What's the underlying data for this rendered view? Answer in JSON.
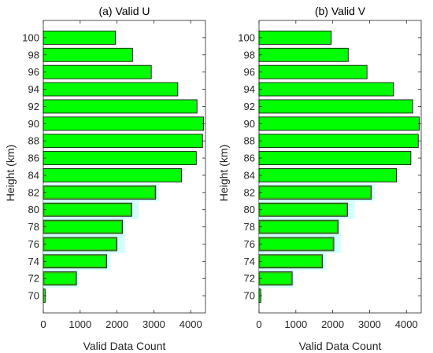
{
  "colors": {
    "bar_fill": "#00ff00",
    "bar_stroke": "#000000",
    "shadow": "#ccffff",
    "bar_dark": "#4d8a1e",
    "axis": "#262626"
  },
  "chart_data": [
    {
      "type": "bar",
      "orientation": "horizontal",
      "title": "(a) Valid U",
      "xlabel": "Valid Data Count",
      "ylabel": "Height (km)",
      "categories": [
        "70",
        "72",
        "74",
        "76",
        "78",
        "80",
        "82",
        "84",
        "86",
        "88",
        "90",
        "92",
        "94",
        "96",
        "98",
        "100"
      ],
      "values": [
        50,
        900,
        1720,
        2000,
        2150,
        2400,
        3050,
        3750,
        4150,
        4320,
        4350,
        4170,
        3650,
        2930,
        2420,
        1960
      ],
      "shadow_values": [
        0,
        960,
        1830,
        2230,
        2230,
        2600,
        3140,
        3750,
        4150,
        4320,
        4350,
        4170,
        3650,
        2930,
        2420,
        1960
      ],
      "xlim": [
        0,
        4400
      ],
      "ylim": [
        68,
        102
      ],
      "xticks": [
        "0",
        "1000",
        "2000",
        "3000",
        "4000"
      ],
      "yticks": [
        "70",
        "72",
        "74",
        "76",
        "78",
        "80",
        "82",
        "84",
        "86",
        "88",
        "90",
        "92",
        "94",
        "96",
        "98",
        "100"
      ],
      "grid": false
    },
    {
      "type": "bar",
      "orientation": "horizontal",
      "title": "(b) Valid V",
      "xlabel": "Valid Data Count",
      "ylabel": "Height (km)",
      "categories": [
        "70",
        "72",
        "74",
        "76",
        "78",
        "80",
        "82",
        "84",
        "86",
        "88",
        "90",
        "92",
        "94",
        "96",
        "98",
        "100"
      ],
      "values": [
        50,
        900,
        1720,
        2030,
        2150,
        2400,
        3050,
        3730,
        4120,
        4320,
        4350,
        4170,
        3650,
        2930,
        2420,
        1960
      ],
      "shadow_values": [
        0,
        960,
        1830,
        2230,
        2230,
        2600,
        3140,
        3730,
        4120,
        4320,
        4350,
        4170,
        3650,
        2930,
        2420,
        1960
      ],
      "xlim": [
        0,
        4400
      ],
      "ylim": [
        68,
        102
      ],
      "xticks": [
        "0",
        "1000",
        "2000",
        "3000",
        "4000"
      ],
      "yticks": [
        "70",
        "72",
        "74",
        "76",
        "78",
        "80",
        "82",
        "84",
        "86",
        "88",
        "90",
        "92",
        "94",
        "96",
        "98",
        "100"
      ],
      "grid": false
    }
  ]
}
